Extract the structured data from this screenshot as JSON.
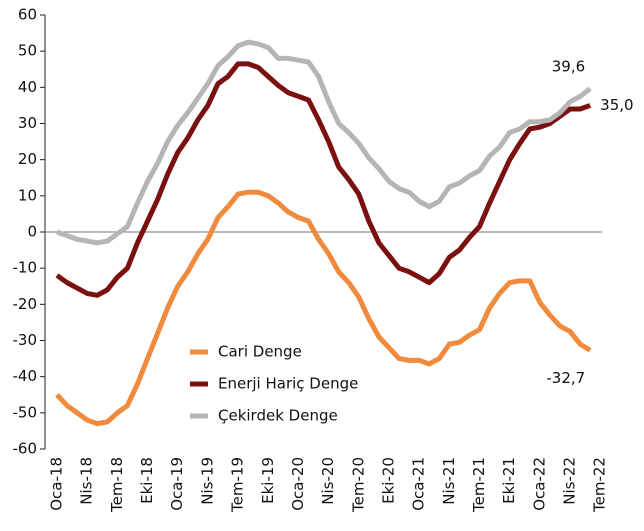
{
  "chart_data": {
    "type": "line",
    "categories": [
      "Oca-18",
      null,
      null,
      "Nis-18",
      null,
      null,
      "Tem-18",
      null,
      null,
      "Eki-18",
      null,
      null,
      "Oca-19",
      null,
      null,
      "Nis-19",
      null,
      null,
      "Tem-19",
      null,
      null,
      "Eki-19",
      null,
      null,
      "Oca-20",
      null,
      null,
      "Nis-20",
      null,
      null,
      "Tem-20",
      null,
      null,
      "Eki-20",
      null,
      null,
      "Oca-21",
      null,
      null,
      "Nis-21",
      null,
      null,
      "Tem-21",
      null,
      null,
      "Eki-21",
      null,
      null,
      "Oca-22",
      null,
      null,
      "Nis-22",
      null,
      null,
      "Tem-22"
    ],
    "series": [
      {
        "name": "Cari Denge",
        "color": "#f08a3c",
        "values": [
          -45,
          -48,
          -50,
          -52,
          -53,
          -52.5,
          -50,
          -48,
          -42,
          -35,
          -28,
          -21,
          -15,
          -11,
          -6,
          -2,
          4,
          7,
          10.5,
          11,
          11,
          10,
          8,
          5.5,
          4,
          3,
          -2,
          -6,
          -11,
          -14,
          -18,
          -24,
          -29,
          -32,
          -35,
          -35.5,
          -35.5,
          -36.5,
          -35,
          -31,
          -30.5,
          -28.5,
          -27,
          -21,
          -17,
          -14,
          -13.5,
          -13.5,
          -19.5,
          -23,
          -26,
          -27.5,
          -31,
          -32.7,
          null
        ],
        "value_labels": [
          null,
          null,
          null,
          null,
          null,
          null,
          null,
          null,
          null,
          null,
          null,
          null,
          null,
          null,
          null,
          null,
          null,
          null,
          null,
          null,
          null,
          null,
          null,
          null,
          null,
          null,
          null,
          null,
          null,
          null,
          null,
          null,
          null,
          null,
          null,
          null,
          null,
          null,
          null,
          null,
          null,
          null,
          null,
          null,
          null,
          null,
          null,
          null,
          null,
          null,
          null,
          null,
          null,
          "-32,7",
          null
        ]
      },
      {
        "name": "Enerji Hariç Denge",
        "color": "#7b1010",
        "values": [
          -12,
          -14,
          -15.5,
          -17,
          -17.5,
          -16,
          -12.5,
          -10,
          -3,
          3,
          9,
          16,
          22,
          26,
          31,
          35,
          41,
          43,
          46.5,
          46.5,
          45.5,
          43,
          40.5,
          38.5,
          37.5,
          36.5,
          31,
          25,
          18,
          14.5,
          10.5,
          3,
          -3,
          -6.5,
          -10,
          -11,
          -12.5,
          -14,
          -11.5,
          -7,
          -5,
          -1.5,
          1.5,
          8,
          14,
          20,
          24.5,
          28.5,
          29,
          30,
          32,
          34,
          34,
          35,
          null
        ],
        "value_labels": [
          null,
          null,
          null,
          null,
          null,
          null,
          null,
          null,
          null,
          null,
          null,
          null,
          null,
          null,
          null,
          null,
          null,
          null,
          null,
          null,
          null,
          null,
          null,
          null,
          null,
          null,
          null,
          null,
          null,
          null,
          null,
          null,
          null,
          null,
          null,
          null,
          null,
          null,
          null,
          null,
          null,
          null,
          null,
          null,
          null,
          null,
          null,
          null,
          null,
          null,
          null,
          null,
          null,
          "35,0",
          null
        ]
      },
      {
        "name": "Çekirdek Denge",
        "color": "#b5b5b5",
        "values": [
          0,
          -1,
          -2,
          -2.5,
          -3,
          -2.5,
          -0.5,
          1.5,
          8,
          14,
          19,
          25,
          29.5,
          33,
          37,
          41,
          46,
          48.5,
          51.5,
          52.5,
          52,
          51,
          48,
          48,
          47.5,
          47,
          43,
          36,
          30,
          27.5,
          24.5,
          20.5,
          17.5,
          14,
          12,
          11,
          8.5,
          7,
          8.5,
          12.5,
          13.5,
          15.5,
          17,
          21,
          23.5,
          27.5,
          28.5,
          30.5,
          30.5,
          31,
          33,
          36,
          37.5,
          39.6,
          null
        ],
        "value_labels": [
          null,
          null,
          null,
          null,
          null,
          null,
          null,
          null,
          null,
          null,
          null,
          null,
          null,
          null,
          null,
          null,
          null,
          null,
          null,
          null,
          null,
          null,
          null,
          null,
          null,
          null,
          null,
          null,
          null,
          null,
          null,
          null,
          null,
          null,
          null,
          null,
          null,
          null,
          null,
          null,
          null,
          null,
          null,
          null,
          null,
          null,
          null,
          null,
          null,
          null,
          null,
          null,
          null,
          "39,6",
          null
        ]
      }
    ],
    "ylim": [
      -60,
      60
    ],
    "yticks": [
      -60,
      -50,
      -40,
      -30,
      -20,
      -10,
      0,
      10,
      20,
      30,
      40,
      50,
      60
    ]
  }
}
